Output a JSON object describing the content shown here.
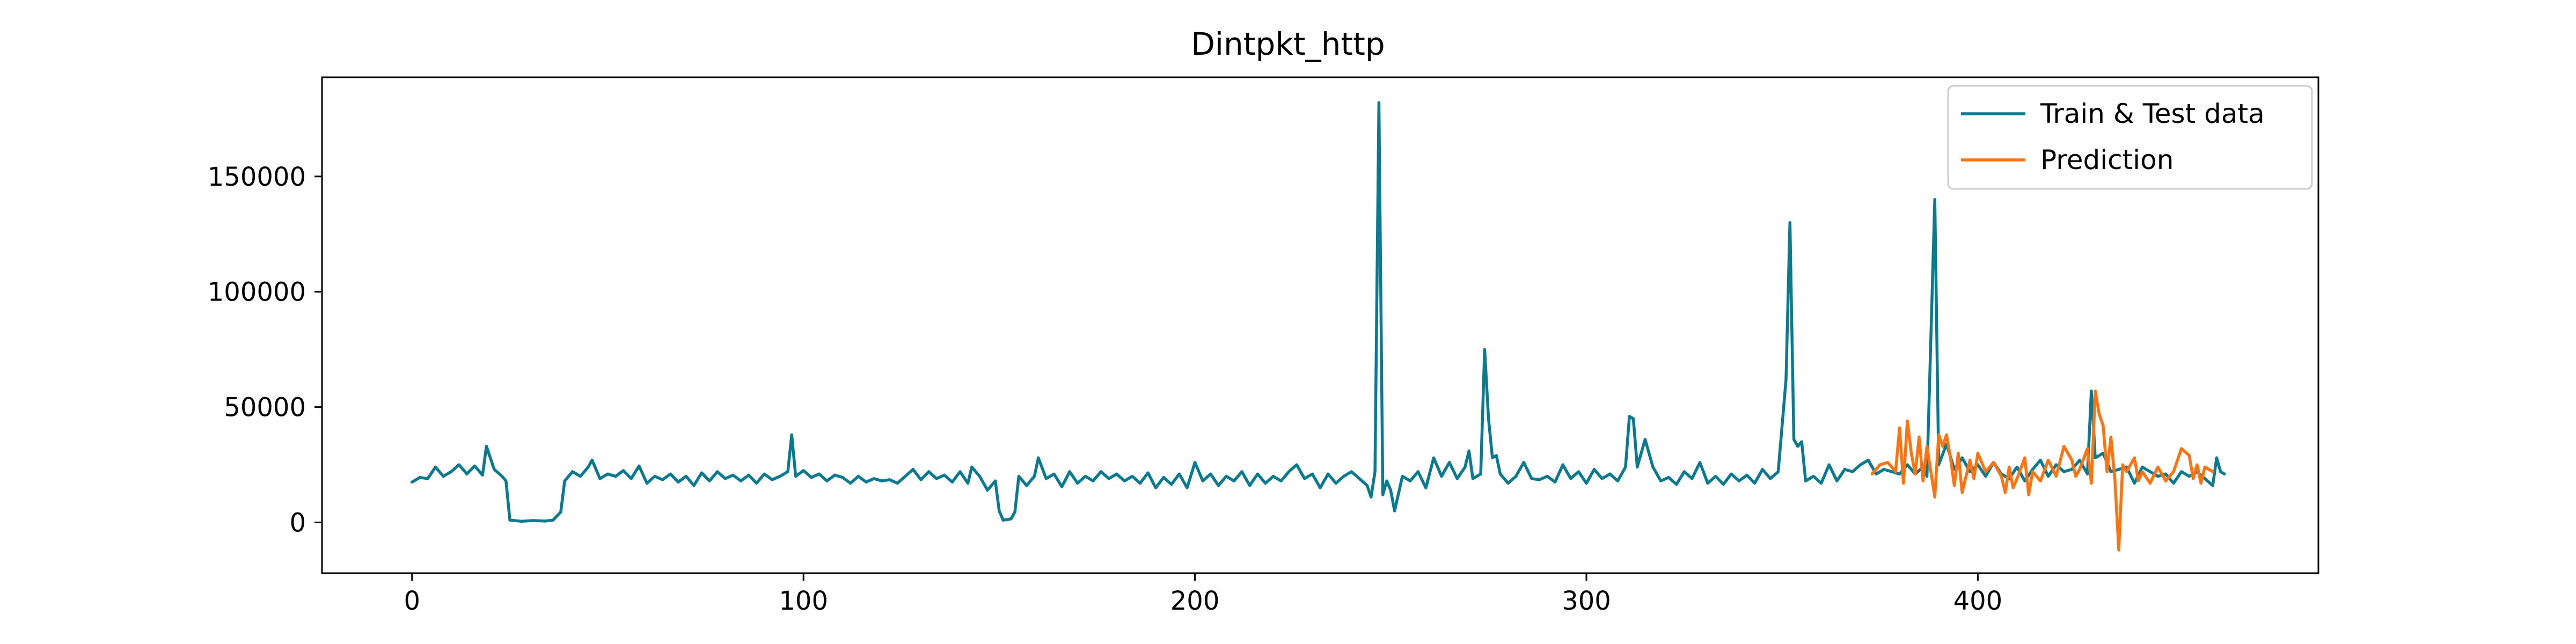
{
  "chart_data": {
    "type": "line",
    "title": "Dintpkt_http",
    "xlabel": "",
    "ylabel": "",
    "xlim": [
      -23,
      487
    ],
    "ylim": [
      -22000,
      193000
    ],
    "x_ticks": [
      0,
      100,
      200,
      300,
      400
    ],
    "x_tick_labels": [
      "0",
      "100",
      "200",
      "300",
      "400"
    ],
    "y_ticks": [
      0,
      50000,
      100000,
      150000
    ],
    "y_tick_labels": [
      "0",
      "50000",
      "100000",
      "150000"
    ],
    "grid": false,
    "legend_position": "top-right",
    "series": [
      {
        "name": "Train & Test data",
        "color": "#0a7a91",
        "points": [
          [
            0,
            17500
          ],
          [
            2,
            19500
          ],
          [
            4,
            19000
          ],
          [
            6,
            24000
          ],
          [
            8,
            20000
          ],
          [
            10,
            22000
          ],
          [
            12,
            25000
          ],
          [
            14,
            21000
          ],
          [
            16,
            24500
          ],
          [
            18,
            20500
          ],
          [
            19,
            33000
          ],
          [
            21,
            23000
          ],
          [
            23,
            20000
          ],
          [
            24,
            18000
          ],
          [
            25,
            1000
          ],
          [
            28,
            500
          ],
          [
            31,
            800
          ],
          [
            34,
            600
          ],
          [
            36,
            1000
          ],
          [
            38,
            4500
          ],
          [
            39,
            18000
          ],
          [
            41,
            22000
          ],
          [
            43,
            20000
          ],
          [
            45,
            24000
          ],
          [
            46,
            27000
          ],
          [
            48,
            19000
          ],
          [
            50,
            21000
          ],
          [
            52,
            20000
          ],
          [
            54,
            22500
          ],
          [
            56,
            19000
          ],
          [
            58,
            24500
          ],
          [
            60,
            17000
          ],
          [
            62,
            20000
          ],
          [
            64,
            18500
          ],
          [
            66,
            21000
          ],
          [
            68,
            17500
          ],
          [
            70,
            20000
          ],
          [
            72,
            16000
          ],
          [
            74,
            21500
          ],
          [
            76,
            18000
          ],
          [
            78,
            22000
          ],
          [
            80,
            19000
          ],
          [
            82,
            20500
          ],
          [
            84,
            18000
          ],
          [
            86,
            20500
          ],
          [
            88,
            17000
          ],
          [
            90,
            21000
          ],
          [
            92,
            18500
          ],
          [
            94,
            20000
          ],
          [
            96,
            22000
          ],
          [
            97,
            38000
          ],
          [
            98,
            20000
          ],
          [
            100,
            22500
          ],
          [
            102,
            19500
          ],
          [
            104,
            21000
          ],
          [
            106,
            18000
          ],
          [
            108,
            20500
          ],
          [
            110,
            19500
          ],
          [
            112,
            17000
          ],
          [
            114,
            20000
          ],
          [
            116,
            17500
          ],
          [
            118,
            19000
          ],
          [
            120,
            18000
          ],
          [
            122,
            18500
          ],
          [
            124,
            17000
          ],
          [
            126,
            20000
          ],
          [
            128,
            23000
          ],
          [
            130,
            18500
          ],
          [
            132,
            22000
          ],
          [
            134,
            19000
          ],
          [
            136,
            20500
          ],
          [
            138,
            17500
          ],
          [
            140,
            22000
          ],
          [
            142,
            17000
          ],
          [
            143,
            24000
          ],
          [
            145,
            20000
          ],
          [
            147,
            14000
          ],
          [
            149,
            18000
          ],
          [
            150,
            5000
          ],
          [
            151,
            1000
          ],
          [
            153,
            1500
          ],
          [
            154,
            4500
          ],
          [
            155,
            20000
          ],
          [
            157,
            16000
          ],
          [
            159,
            20000
          ],
          [
            160,
            28000
          ],
          [
            162,
            19000
          ],
          [
            164,
            21000
          ],
          [
            166,
            15500
          ],
          [
            168,
            22000
          ],
          [
            170,
            17000
          ],
          [
            172,
            20000
          ],
          [
            174,
            18000
          ],
          [
            176,
            22000
          ],
          [
            178,
            19000
          ],
          [
            180,
            21000
          ],
          [
            182,
            18000
          ],
          [
            184,
            20000
          ],
          [
            186,
            17000
          ],
          [
            188,
            21500
          ],
          [
            190,
            15000
          ],
          [
            192,
            19500
          ],
          [
            194,
            16500
          ],
          [
            196,
            21000
          ],
          [
            198,
            15000
          ],
          [
            200,
            26000
          ],
          [
            202,
            18000
          ],
          [
            204,
            21000
          ],
          [
            206,
            16000
          ],
          [
            208,
            20000
          ],
          [
            210,
            18000
          ],
          [
            212,
            22000
          ],
          [
            214,
            16000
          ],
          [
            216,
            21000
          ],
          [
            218,
            17000
          ],
          [
            220,
            20000
          ],
          [
            222,
            18000
          ],
          [
            224,
            22000
          ],
          [
            226,
            25000
          ],
          [
            228,
            19000
          ],
          [
            230,
            21000
          ],
          [
            232,
            15000
          ],
          [
            234,
            21000
          ],
          [
            236,
            17000
          ],
          [
            238,
            20000
          ],
          [
            240,
            22000
          ],
          [
            242,
            19000
          ],
          [
            244,
            16000
          ],
          [
            245,
            11000
          ],
          [
            246,
            22000
          ],
          [
            247,
            182000
          ],
          [
            248,
            12000
          ],
          [
            249,
            18000
          ],
          [
            250,
            14000
          ],
          [
            251,
            5000
          ],
          [
            253,
            20000
          ],
          [
            255,
            18000
          ],
          [
            257,
            22000
          ],
          [
            259,
            15000
          ],
          [
            261,
            28000
          ],
          [
            263,
            20000
          ],
          [
            265,
            26000
          ],
          [
            267,
            19000
          ],
          [
            269,
            24000
          ],
          [
            270,
            31000
          ],
          [
            271,
            19000
          ],
          [
            273,
            21000
          ],
          [
            274,
            75000
          ],
          [
            275,
            45000
          ],
          [
            276,
            28000
          ],
          [
            277,
            29000
          ],
          [
            278,
            21000
          ],
          [
            280,
            17000
          ],
          [
            282,
            20000
          ],
          [
            284,
            26000
          ],
          [
            286,
            19000
          ],
          [
            288,
            18500
          ],
          [
            290,
            20000
          ],
          [
            292,
            17500
          ],
          [
            294,
            25000
          ],
          [
            296,
            19000
          ],
          [
            298,
            22000
          ],
          [
            300,
            17000
          ],
          [
            302,
            23000
          ],
          [
            304,
            19000
          ],
          [
            306,
            21000
          ],
          [
            308,
            18000
          ],
          [
            310,
            24000
          ],
          [
            311,
            46000
          ],
          [
            312,
            45000
          ],
          [
            313,
            24000
          ],
          [
            315,
            36000
          ],
          [
            317,
            24000
          ],
          [
            319,
            18000
          ],
          [
            321,
            19500
          ],
          [
            323,
            16500
          ],
          [
            325,
            22000
          ],
          [
            327,
            19000
          ],
          [
            329,
            26000
          ],
          [
            331,
            17000
          ],
          [
            333,
            20000
          ],
          [
            335,
            16500
          ],
          [
            337,
            21000
          ],
          [
            339,
            18000
          ],
          [
            341,
            20500
          ],
          [
            343,
            17000
          ],
          [
            345,
            23000
          ],
          [
            347,
            19000
          ],
          [
            349,
            22000
          ],
          [
            351,
            62000
          ],
          [
            352,
            130000
          ],
          [
            353,
            36000
          ],
          [
            354,
            33000
          ],
          [
            355,
            35000
          ],
          [
            356,
            18000
          ],
          [
            358,
            20000
          ],
          [
            360,
            17000
          ],
          [
            362,
            25000
          ],
          [
            364,
            18000
          ],
          [
            366,
            23000
          ],
          [
            368,
            22000
          ],
          [
            370,
            25000
          ],
          [
            372,
            27000
          ],
          [
            374,
            21000
          ],
          [
            376,
            23000
          ],
          [
            378,
            22000
          ],
          [
            380,
            21000
          ],
          [
            382,
            25000
          ],
          [
            384,
            21000
          ],
          [
            386,
            24000
          ],
          [
            387,
            20000
          ],
          [
            389,
            140000
          ],
          [
            390,
            25000
          ],
          [
            392,
            34000
          ],
          [
            394,
            23000
          ],
          [
            396,
            28000
          ],
          [
            398,
            22000
          ],
          [
            400,
            25000
          ],
          [
            402,
            20000
          ],
          [
            404,
            26000
          ],
          [
            406,
            21000
          ],
          [
            408,
            19000
          ],
          [
            410,
            24000
          ],
          [
            412,
            18000
          ],
          [
            414,
            23000
          ],
          [
            416,
            27000
          ],
          [
            418,
            20000
          ],
          [
            420,
            25000
          ],
          [
            422,
            22000
          ],
          [
            424,
            23000
          ],
          [
            426,
            27000
          ],
          [
            428,
            21000
          ],
          [
            429,
            57000
          ],
          [
            430,
            28000
          ],
          [
            432,
            30000
          ],
          [
            434,
            22000
          ],
          [
            436,
            23000
          ],
          [
            438,
            24000
          ],
          [
            440,
            17000
          ],
          [
            442,
            24000
          ],
          [
            444,
            22000
          ],
          [
            446,
            20000
          ],
          [
            448,
            21000
          ],
          [
            450,
            17000
          ],
          [
            452,
            22000
          ],
          [
            454,
            20000
          ],
          [
            456,
            22000
          ],
          [
            458,
            19000
          ],
          [
            460,
            16000
          ],
          [
            461,
            28000
          ],
          [
            462,
            22000
          ],
          [
            463,
            21000
          ]
        ]
      },
      {
        "name": "Prediction",
        "color": "#ff7210",
        "points": [
          [
            373,
            21000
          ],
          [
            375,
            25000
          ],
          [
            377,
            26000
          ],
          [
            379,
            22000
          ],
          [
            380,
            41000
          ],
          [
            381,
            17000
          ],
          [
            382,
            44000
          ],
          [
            383,
            30000
          ],
          [
            384,
            21000
          ],
          [
            385,
            37000
          ],
          [
            386,
            18000
          ],
          [
            387,
            33000
          ],
          [
            388,
            22000
          ],
          [
            389,
            11000
          ],
          [
            390,
            38000
          ],
          [
            391,
            33000
          ],
          [
            392,
            38000
          ],
          [
            393,
            28000
          ],
          [
            394,
            16000
          ],
          [
            395,
            30000
          ],
          [
            396,
            13000
          ],
          [
            398,
            27000
          ],
          [
            399,
            19000
          ],
          [
            400,
            30000
          ],
          [
            402,
            22000
          ],
          [
            404,
            26000
          ],
          [
            406,
            20000
          ],
          [
            407,
            13000
          ],
          [
            408,
            24000
          ],
          [
            409,
            15000
          ],
          [
            410,
            19000
          ],
          [
            412,
            28000
          ],
          [
            413,
            12000
          ],
          [
            414,
            22000
          ],
          [
            416,
            18000
          ],
          [
            418,
            27000
          ],
          [
            420,
            20000
          ],
          [
            422,
            33000
          ],
          [
            424,
            27000
          ],
          [
            425,
            20000
          ],
          [
            426,
            23000
          ],
          [
            428,
            32000
          ],
          [
            429,
            17000
          ],
          [
            430,
            57000
          ],
          [
            431,
            47000
          ],
          [
            432,
            42000
          ],
          [
            433,
            22000
          ],
          [
            434,
            37000
          ],
          [
            435,
            19000
          ],
          [
            436,
            -12000
          ],
          [
            437,
            25000
          ],
          [
            438,
            22000
          ],
          [
            440,
            28000
          ],
          [
            441,
            18000
          ],
          [
            442,
            22000
          ],
          [
            444,
            17000
          ],
          [
            446,
            24000
          ],
          [
            448,
            18000
          ],
          [
            450,
            22000
          ],
          [
            452,
            32000
          ],
          [
            454,
            29000
          ],
          [
            455,
            19000
          ],
          [
            456,
            25000
          ],
          [
            457,
            17000
          ],
          [
            458,
            24000
          ],
          [
            460,
            22000
          ]
        ]
      }
    ]
  }
}
